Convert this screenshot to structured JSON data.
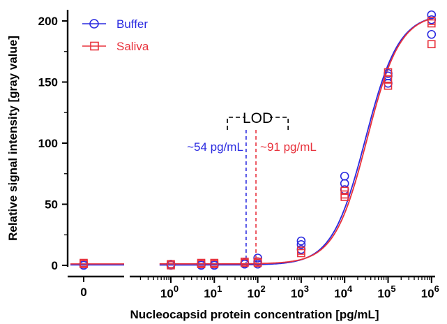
{
  "chart_data": {
    "type": "scatter",
    "xlabel": "Nucleocapsid protein concentration [pg/mL]",
    "ylabel": "Relative signal intensity [gray value]",
    "xscale": "log with separate zero segment and axis break",
    "ylim": [
      0,
      210
    ],
    "yticks": [
      0,
      50,
      100,
      150,
      200
    ],
    "xticks_log": [
      {
        "value": 1,
        "base": "10",
        "exp": "0"
      },
      {
        "value": 10,
        "base": "10",
        "exp": "1"
      },
      {
        "value": 100,
        "base": "10",
        "exp": "2"
      },
      {
        "value": 1000,
        "base": "10",
        "exp": "3"
      },
      {
        "value": 10000,
        "base": "10",
        "exp": "4"
      },
      {
        "value": 100000,
        "base": "10",
        "exp": "5"
      },
      {
        "value": 1000000,
        "base": "10",
        "exp": "6"
      }
    ],
    "xtick_zero": "0",
    "legend": {
      "position": "top-left"
    },
    "series": [
      {
        "name": "Buffer",
        "color": "#2a2ae0",
        "marker": "circle",
        "points": [
          {
            "x": 0,
            "y": 0
          },
          {
            "x": 0,
            "y": 1
          },
          {
            "x": 1,
            "y": 0
          },
          {
            "x": 1,
            "y": 1
          },
          {
            "x": 5,
            "y": 0
          },
          {
            "x": 5,
            "y": 1
          },
          {
            "x": 10,
            "y": 0
          },
          {
            "x": 10,
            "y": 1
          },
          {
            "x": 50,
            "y": 1
          },
          {
            "x": 50,
            "y": 2
          },
          {
            "x": 100,
            "y": 1
          },
          {
            "x": 100,
            "y": 3
          },
          {
            "x": 100,
            "y": 6
          },
          {
            "x": 1000,
            "y": 13
          },
          {
            "x": 1000,
            "y": 17
          },
          {
            "x": 1000,
            "y": 20
          },
          {
            "x": 10000,
            "y": 62
          },
          {
            "x": 10000,
            "y": 67
          },
          {
            "x": 10000,
            "y": 73
          },
          {
            "x": 100000,
            "y": 149
          },
          {
            "x": 100000,
            "y": 155
          },
          {
            "x": 100000,
            "y": 157
          },
          {
            "x": 1000000,
            "y": 189
          },
          {
            "x": 1000000,
            "y": 201
          },
          {
            "x": 1000000,
            "y": 205
          }
        ],
        "fit": {
          "bottom": 0.3,
          "top": 206,
          "ec50": 30000,
          "hill": 1.13
        },
        "lod": {
          "x": 54,
          "label": "~54 pg/mL"
        }
      },
      {
        "name": "Saliva",
        "color": "#e8323c",
        "marker": "square",
        "points": [
          {
            "x": 0,
            "y": 1
          },
          {
            "x": 0,
            "y": 2
          },
          {
            "x": 1,
            "y": 1
          },
          {
            "x": 1,
            "y": 0
          },
          {
            "x": 5,
            "y": 1
          },
          {
            "x": 5,
            "y": 2
          },
          {
            "x": 10,
            "y": 1
          },
          {
            "x": 10,
            "y": 2
          },
          {
            "x": 50,
            "y": 2
          },
          {
            "x": 50,
            "y": 3
          },
          {
            "x": 100,
            "y": 2
          },
          {
            "x": 100,
            "y": 3
          },
          {
            "x": 1000,
            "y": 10
          },
          {
            "x": 1000,
            "y": 12
          },
          {
            "x": 10000,
            "y": 56
          },
          {
            "x": 10000,
            "y": 58
          },
          {
            "x": 10000,
            "y": 61
          },
          {
            "x": 100000,
            "y": 147
          },
          {
            "x": 100000,
            "y": 152
          },
          {
            "x": 100000,
            "y": 158
          },
          {
            "x": 1000000,
            "y": 181
          },
          {
            "x": 1000000,
            "y": 198
          },
          {
            "x": 1000000,
            "y": 200
          }
        ],
        "fit": {
          "bottom": 1.2,
          "top": 206,
          "ec50": 33000,
          "hill": 1.15
        },
        "lod": {
          "x": 91,
          "label": "~91 pg/mL"
        }
      }
    ],
    "annotation": {
      "label": "LOD"
    }
  }
}
